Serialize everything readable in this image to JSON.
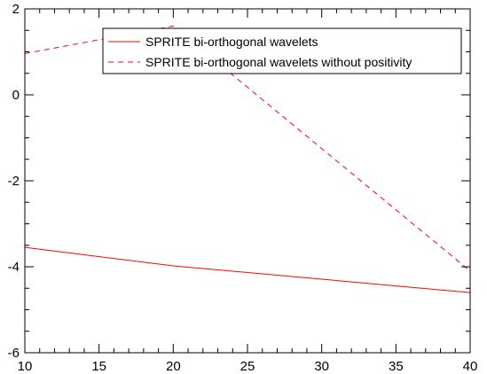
{
  "chart_data": {
    "type": "line",
    "title": "",
    "xlabel": "",
    "ylabel": "",
    "xlim": [
      10,
      40
    ],
    "ylim": [
      -6,
      2
    ],
    "x_ticks": [
      10,
      15,
      20,
      25,
      30,
      35,
      40
    ],
    "x_tick_labels": [
      "10",
      "15",
      "20",
      "25",
      "30",
      "35",
      "40"
    ],
    "y_ticks": [
      -6,
      -4,
      -2,
      0,
      2
    ],
    "y_tick_labels": [
      "-6",
      "-4",
      "-2",
      "0",
      "2"
    ],
    "x_minor_step": 1,
    "y_minor_step": 0.5,
    "grid": false,
    "legend_position": "top-right",
    "series": [
      {
        "name": "SPRITE bi-orthogonal wavelets",
        "style": "solid",
        "color": "#ff0000",
        "x": [
          10,
          20,
          40
        ],
        "y": [
          -3.55,
          -3.98,
          -4.6
        ]
      },
      {
        "name": "SPRITE bi-orthogonal wavelets without positivity",
        "style": "dashed",
        "color": "#ff0000",
        "x": [
          10,
          20,
          40
        ],
        "y": [
          0.96,
          1.6,
          -4.1
        ]
      }
    ]
  }
}
